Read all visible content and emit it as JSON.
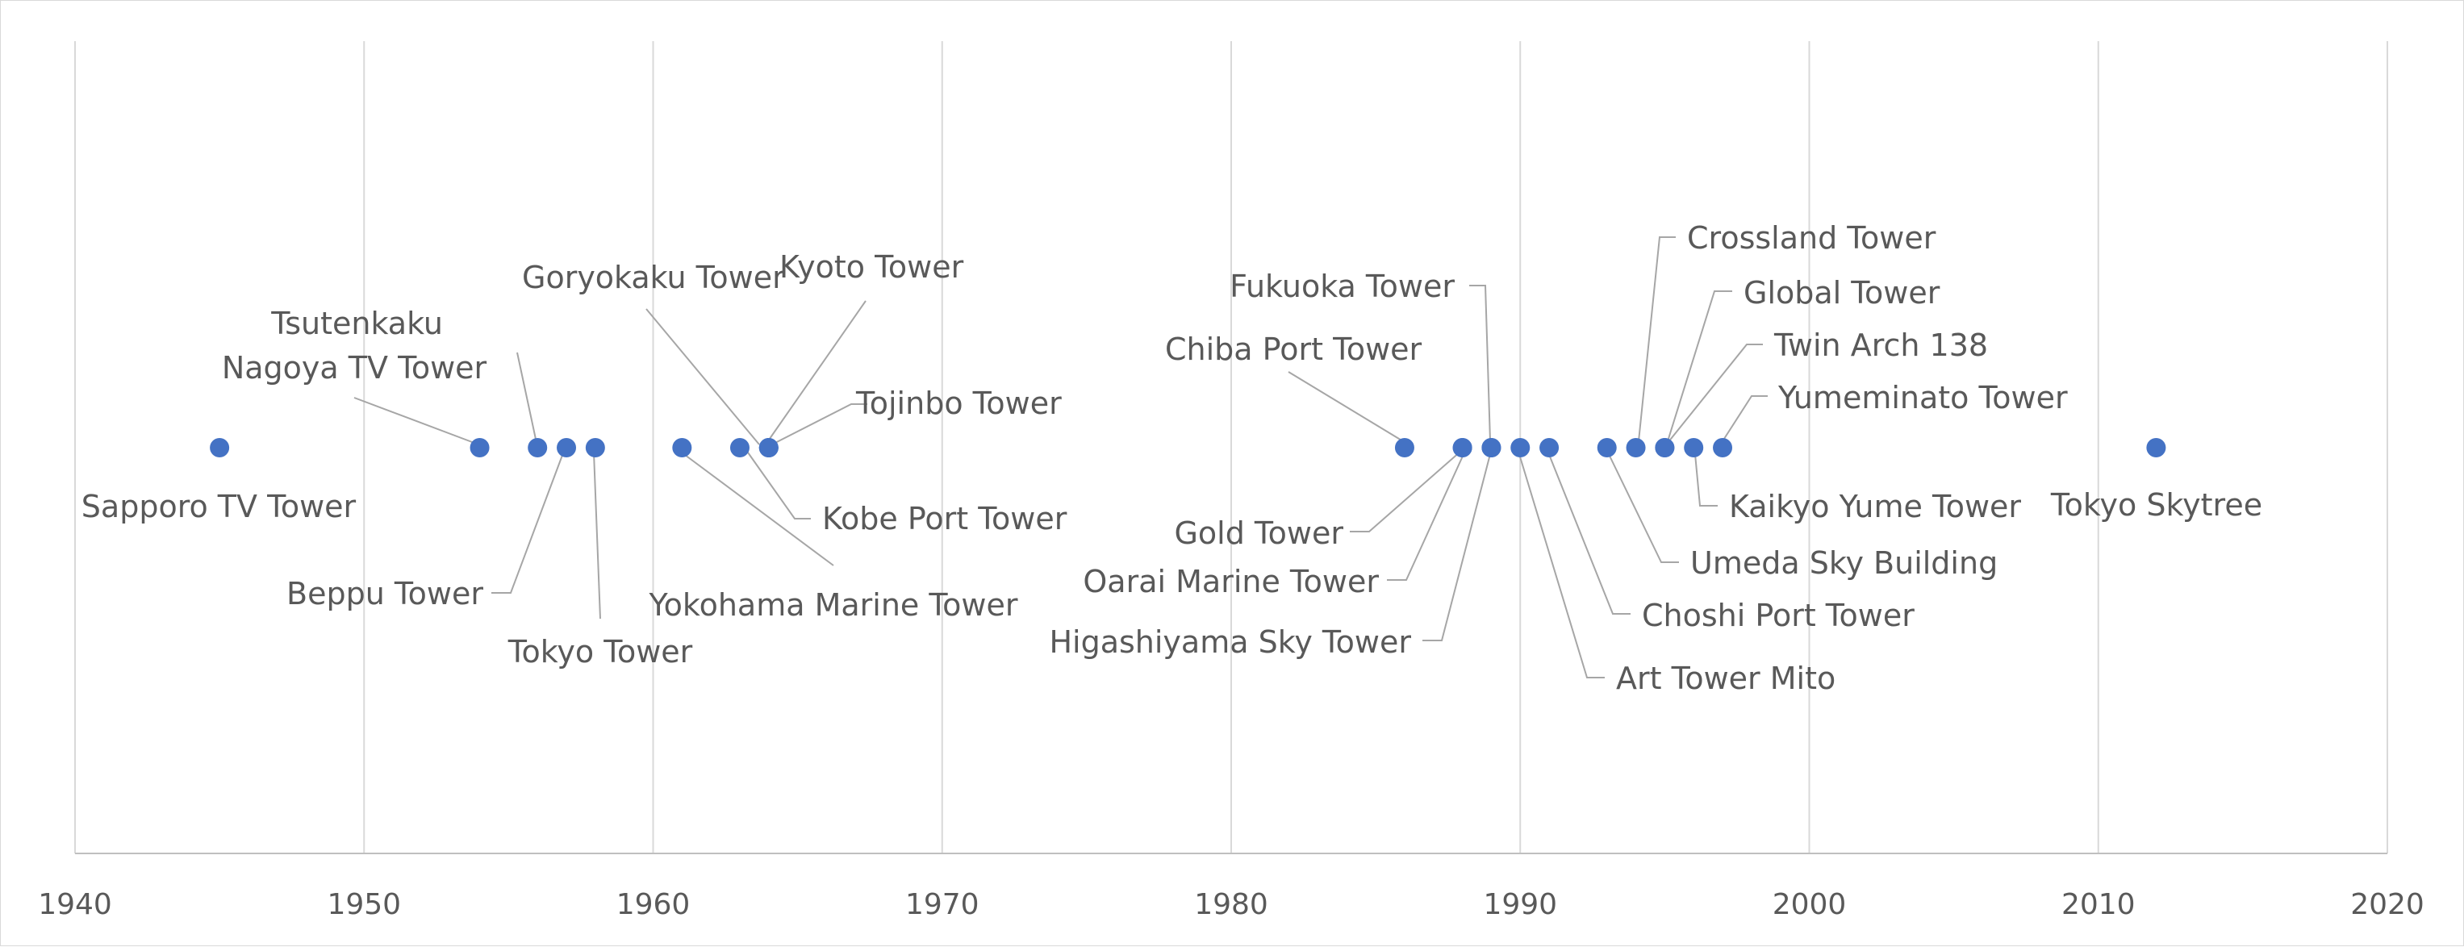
{
  "chart_data": {
    "type": "scatter",
    "title": "",
    "xlabel": "",
    "ylabel": "",
    "xlim": [
      1940,
      2020
    ],
    "x_ticks": [
      1940,
      1950,
      1960,
      1970,
      1980,
      1990,
      2000,
      2010,
      2020
    ],
    "grid": "vertical",
    "marker_color": "#4472C4",
    "line_color": "#a6a6a6",
    "points": [
      {
        "x": 1945,
        "label": "Sapporo TV Tower"
      },
      {
        "x": 1954,
        "label": "Nagoya TV Tower"
      },
      {
        "x": 1956,
        "label": "Tsutenkaku"
      },
      {
        "x": 1957,
        "label": "Beppu Tower"
      },
      {
        "x": 1958,
        "label": "Tokyo Tower"
      },
      {
        "x": 1961,
        "label": "Yokohama Marine Tower"
      },
      {
        "x": 1963,
        "label": "Goryokaku Tower"
      },
      {
        "x": 1964,
        "label": "Kyoto Tower"
      },
      {
        "x": 1964,
        "label": "Tojinbo Tower"
      },
      {
        "x": 1964,
        "label": "Kobe Port Tower"
      },
      {
        "x": 1986,
        "label": "Chiba Port Tower"
      },
      {
        "x": 1988,
        "label": "Gold Tower"
      },
      {
        "x": 1988,
        "label": "Oarai Marine Tower"
      },
      {
        "x": 1989,
        "label": "Fukuoka Tower"
      },
      {
        "x": 1989,
        "label": "Higashiyama Sky Tower"
      },
      {
        "x": 1990,
        "label": "Art Tower Mito"
      },
      {
        "x": 1991,
        "label": "Choshi Port Tower"
      },
      {
        "x": 1993,
        "label": "Umeda Sky Building"
      },
      {
        "x": 1994,
        "label": "Crossland Tower"
      },
      {
        "x": 1995,
        "label": "Global Tower"
      },
      {
        "x": 1995,
        "label": "Twin Arch 138"
      },
      {
        "x": 1996,
        "label": "Kaikyo Yume Tower"
      },
      {
        "x": 1997,
        "label": "Yumeminato Tower"
      },
      {
        "x": 2012,
        "label": "Tokyo Skytree"
      }
    ]
  }
}
